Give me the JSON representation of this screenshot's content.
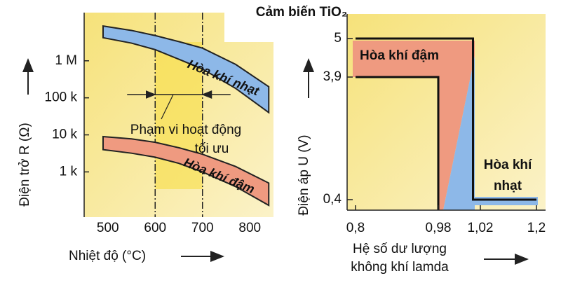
{
  "chart_data": [
    {
      "type": "band",
      "log_y": true,
      "x_label": "Nhiệt độ (°C)",
      "y_label": "Điện trở R (Ω)",
      "x": [
        490,
        550,
        600,
        650,
        700,
        770,
        840
      ],
      "series": [
        {
          "name": "Hòa khí nhạt",
          "color": "#8db8e8",
          "label_color": "#1f4f9a",
          "upper": [
            8700000,
            6600000,
            4800000,
            3300000,
            2200000,
            800000,
            200000
          ],
          "lower": [
            4200000,
            3000000,
            2000000,
            1100000,
            600000,
            180000,
            40000
          ]
        },
        {
          "name": "Hòa khí đậm",
          "color": "#ef9a80",
          "label_color": "#8a2a1a",
          "upper": [
            9000,
            7800,
            6300,
            4500,
            3000,
            1400,
            500
          ],
          "lower": [
            4000,
            3200,
            2500,
            1700,
            1000,
            400,
            125
          ]
        }
      ],
      "operating_range": {
        "label_lines": [
          "Phạm vi hoạt động",
          "tối ưu"
        ],
        "x": [
          600,
          700
        ]
      },
      "xlim": [
        450,
        850
      ],
      "xticks": [
        500,
        600,
        700,
        800
      ],
      "ylim": [
        60,
        20000000
      ],
      "yticks": [
        {
          "value": 1000,
          "label": "1 k"
        },
        {
          "value": 10000,
          "label": "10 k"
        },
        {
          "value": 100000,
          "label": "100 k"
        },
        {
          "value": 1000000,
          "label": "1 M"
        }
      ]
    },
    {
      "type": "step",
      "title": "Cảm biến TiO₂",
      "x_label_lines": [
        "Hệ số dư lượng",
        "không khí lamda"
      ],
      "y_label": "Điện áp U (V)",
      "series": [
        {
          "color": "#111111",
          "x": [
            0.8,
            1.013,
            1.013,
            1.2
          ],
          "values": [
            5,
            5,
            0.4,
            0.4
          ]
        },
        {
          "color": "#111111",
          "x": [
            0.8,
            0.98,
            0.98
          ],
          "values": [
            3.9,
            3.9,
            0.1
          ]
        }
      ],
      "regions": [
        {
          "label_lines": [
            "Hòa khí đậm"
          ]
        },
        {
          "label_lines": [
            "Hòa khí",
            "nhạt"
          ]
        }
      ],
      "xlim": [
        0.8,
        1.2
      ],
      "xticks": [
        {
          "value": 0.8,
          "label": "0,8"
        },
        {
          "value": 0.98,
          "label": "0,98"
        },
        {
          "value": 1.02,
          "label": "1,02"
        },
        {
          "value": 1.2,
          "label": "1,2"
        }
      ],
      "ylim": [
        0.1,
        5.7
      ],
      "yticks": [
        {
          "value": 0.4,
          "label": "0,4"
        },
        {
          "value": 3.9,
          "label": "3,9"
        },
        5
      ]
    }
  ]
}
